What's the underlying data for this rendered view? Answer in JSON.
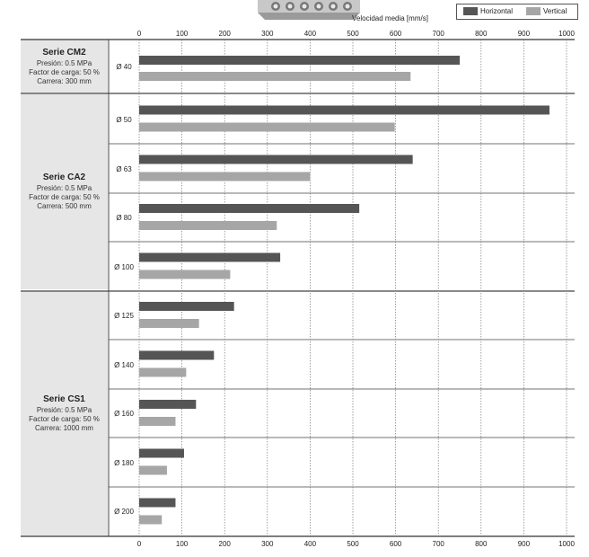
{
  "legend": {
    "horizontal": "Horizontal",
    "vertical": "Vertical"
  },
  "axis_title": "Velocidad media [mm/s]",
  "groups": [
    {
      "title": "Serie CM2",
      "lines": [
        "Presión: 0.5 MPa",
        "Factor de carga: 50 %",
        "Carrera: 300 mm"
      ]
    },
    {
      "title": "Serie CA2",
      "lines": [
        "Presión: 0.5 MPa",
        "Factor de carga: 50 %",
        "Carrera: 500 mm"
      ]
    },
    {
      "title": "Serie CS1",
      "lines": [
        "Presión: 0.5 MPa",
        "Factor de carga: 50 %",
        "Carrera: 1000 mm"
      ]
    }
  ],
  "colors": {
    "horizontal": "#555555",
    "vertical": "#a6a6a6",
    "panel": "#e6e6e6",
    "grid": "#777777"
  },
  "chart_data": {
    "type": "bar",
    "orientation": "horizontal",
    "x_axis_title": "Velocidad media [mm/s]",
    "xlim": [
      0,
      1000
    ],
    "xticks": [
      0,
      100,
      200,
      300,
      400,
      500,
      600,
      700,
      800,
      900,
      1000
    ],
    "tick_labels": [
      "0",
      "100",
      "200",
      "300",
      "400",
      "500",
      "600",
      "700",
      "800",
      "900",
      "1000"
    ],
    "legend_position": "top-right",
    "grid": "vertical dashed",
    "categories": [
      "Ø 40",
      "Ø 50",
      "Ø 63",
      "Ø 80",
      "Ø 100",
      "Ø 125",
      "Ø 140",
      "Ø 160",
      "Ø 180",
      "Ø 200"
    ],
    "category_series": [
      "Serie CM2",
      "Serie CA2",
      "Serie CA2",
      "Serie CA2",
      "Serie CA2",
      "Serie CS1",
      "Serie CS1",
      "Serie CS1",
      "Serie CS1",
      "Serie CS1"
    ],
    "series": [
      {
        "name": "Horizontal",
        "values": [
          750,
          960,
          640,
          515,
          330,
          222,
          175,
          133,
          105,
          85
        ]
      },
      {
        "name": "Vertical",
        "values": [
          635,
          598,
          400,
          322,
          213,
          140,
          110,
          85,
          65,
          53
        ]
      }
    ]
  }
}
